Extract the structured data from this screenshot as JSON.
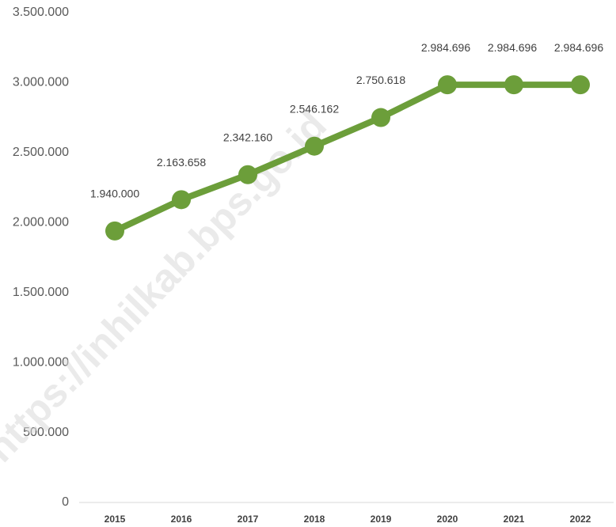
{
  "chart_data": {
    "type": "line",
    "watermark": "https://inhilkab.bps.go.id",
    "categories": [
      "2015",
      "2016",
      "2017",
      "2018",
      "2019",
      "2020",
      "2021",
      "2022"
    ],
    "series": [
      {
        "name": null,
        "color": "#6c9e3a",
        "values": [
          1940000,
          2163658,
          2342160,
          2546162,
          2750618,
          2984696,
          2984696,
          2984696
        ],
        "value_labels": [
          "1.940.000",
          "2.163.658",
          "2.342.160",
          "2.546.162",
          "2.750.618",
          "2.984.696",
          "2.984.696",
          "2.984.696"
        ]
      }
    ],
    "ylim": [
      0,
      3500000
    ],
    "yticks": [
      0,
      {
        "value": 500000,
        "label": "500.000"
      },
      {
        "value": 1000000,
        "label": "1.000.000"
      },
      {
        "value": 1500000,
        "label": "1.500.000"
      },
      {
        "value": 2000000,
        "label": "2.000.000"
      },
      {
        "value": 2500000,
        "label": "2.500.000"
      },
      {
        "value": 3000000,
        "label": "3.000.000"
      },
      {
        "value": 3500000,
        "label": "3.500.000"
      }
    ],
    "grid": false
  }
}
